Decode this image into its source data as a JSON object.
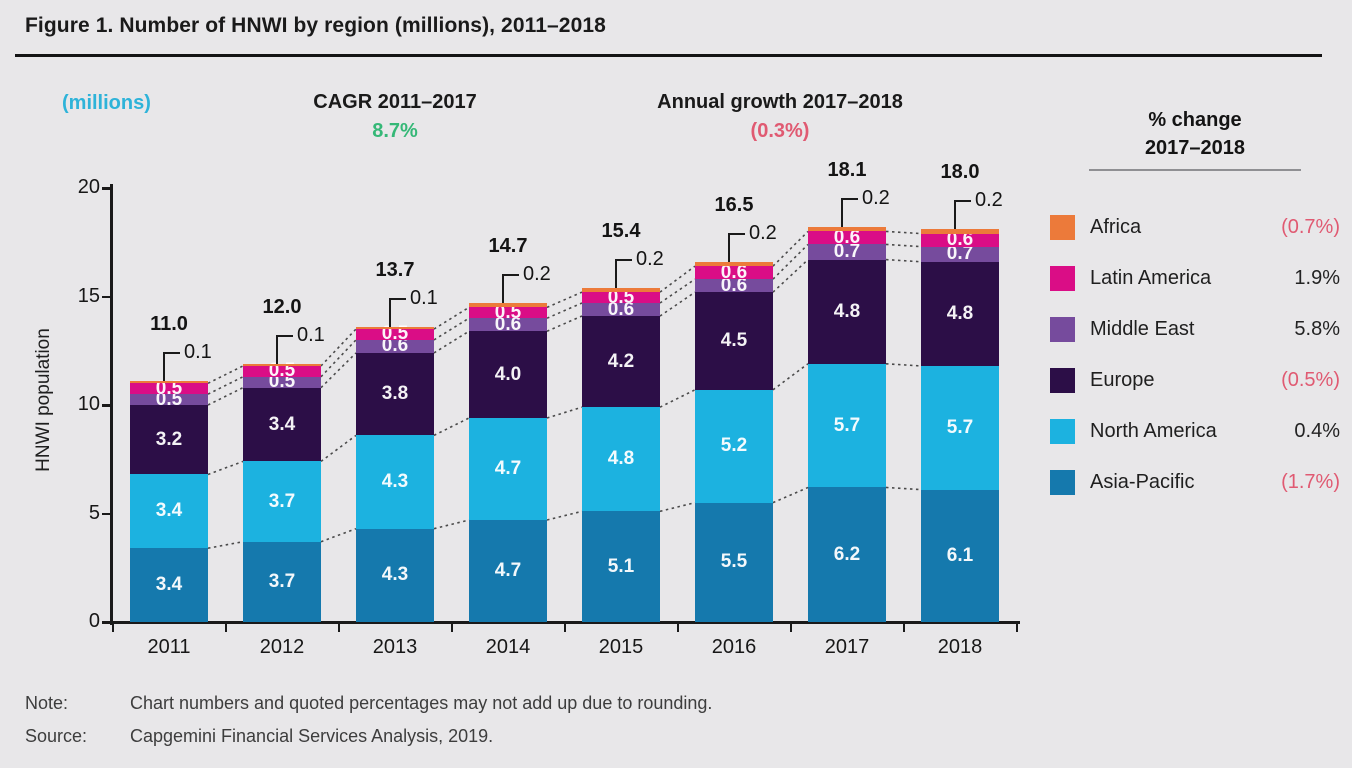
{
  "title": "Figure 1. Number of HNWI by region (millions), 2011–2018",
  "header": {
    "units_label": "(millions)",
    "cagr_label": "CAGR 2011–2017",
    "cagr_value": "8.7%",
    "growth_label": "Annual growth 2017–2018",
    "growth_value": "(0.3%)"
  },
  "colors": {
    "background": "#e8e7e9",
    "units_cyan": "#2eb3d9",
    "cagr_green": "#35b877",
    "negative_pink": "#e05a72",
    "dark_text": "#1a1a1a",
    "footer_text": "#3d3d3d",
    "connector_gray": "#4a4a4a"
  },
  "chart_data": {
    "type": "bar",
    "stacked": true,
    "title": "Number of HNWI by region (millions), 2011–2018",
    "ylabel": "HNWI population",
    "xlabel": "",
    "ylim": [
      0,
      20
    ],
    "yticks": [
      0,
      5,
      10,
      15,
      20
    ],
    "grid": false,
    "legend_position": "right",
    "categories": [
      "2011",
      "2012",
      "2013",
      "2014",
      "2015",
      "2016",
      "2017",
      "2018"
    ],
    "series": [
      {
        "name": "Asia-Pacific",
        "color": "#1579ad",
        "values": [
          3.4,
          3.7,
          4.3,
          4.7,
          5.1,
          5.5,
          6.2,
          6.1
        ]
      },
      {
        "name": "North America",
        "color": "#1cb2e0",
        "values": [
          3.4,
          3.7,
          4.3,
          4.7,
          4.8,
          5.2,
          5.7,
          5.7
        ]
      },
      {
        "name": "Europe",
        "color": "#2c0e47",
        "values": [
          3.2,
          3.4,
          3.8,
          4.0,
          4.2,
          4.5,
          4.8,
          4.8
        ]
      },
      {
        "name": "Middle East",
        "color": "#764b9d",
        "values": [
          0.5,
          0.5,
          0.6,
          0.6,
          0.6,
          0.6,
          0.7,
          0.7
        ]
      },
      {
        "name": "Latin America",
        "color": "#da0d86",
        "values": [
          0.5,
          0.5,
          0.5,
          0.5,
          0.5,
          0.6,
          0.6,
          0.6
        ]
      },
      {
        "name": "Africa",
        "color": "#ec7a3a",
        "values": [
          0.1,
          0.1,
          0.1,
          0.2,
          0.2,
          0.2,
          0.2,
          0.2
        ]
      }
    ],
    "totals": [
      "11.0",
      "12.0",
      "13.7",
      "14.7",
      "15.4",
      "16.5",
      "18.1",
      "18.0"
    ],
    "africa_callouts": [
      "0.1",
      "0.1",
      "0.1",
      "0.2",
      "0.2",
      "0.2",
      "0.2",
      "0.2"
    ]
  },
  "legend": {
    "header_line1": "% change",
    "header_line2": "2017–2018",
    "items": [
      {
        "name": "Africa",
        "color": "#ec7a3a",
        "change": "(0.7%)",
        "negative": true
      },
      {
        "name": "Latin America",
        "color": "#da0d86",
        "change": "1.9%",
        "negative": false
      },
      {
        "name": "Middle East",
        "color": "#764b9d",
        "change": "5.8%",
        "negative": false
      },
      {
        "name": "Europe",
        "color": "#2c0e47",
        "change": "(0.5%)",
        "negative": true
      },
      {
        "name": "North America",
        "color": "#1cb2e0",
        "change": "0.4%",
        "negative": false
      },
      {
        "name": "Asia-Pacific",
        "color": "#1579ad",
        "change": "(1.7%)",
        "negative": true
      }
    ]
  },
  "footer": {
    "note_label": "Note:",
    "note_text": "Chart numbers and quoted percentages may not add up due to rounding.",
    "source_label": "Source:",
    "source_text": "Capgemini Financial Services Analysis, 2019."
  }
}
